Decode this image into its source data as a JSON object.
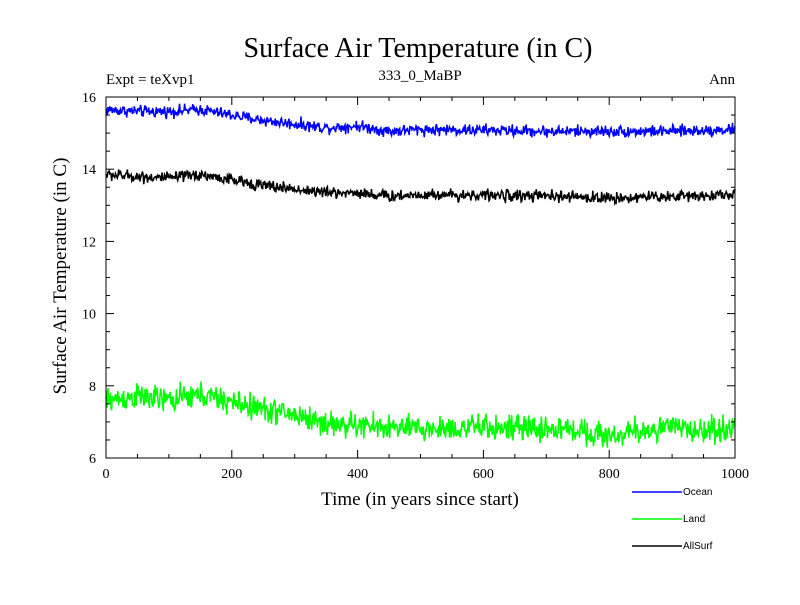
{
  "chart_data": {
    "type": "line",
    "title": "Surface Air Temperature (in C)",
    "subtitle_left": "Expt = teXvp1",
    "subtitle_center": "333_0_MaBP",
    "subtitle_right": "Ann",
    "xlabel": "Time (in years since start)",
    "ylabel": "Surface Air Temperature (in C)",
    "xlim": [
      0,
      1000
    ],
    "ylim": [
      6,
      16
    ],
    "xticks": [
      0,
      200,
      400,
      600,
      800,
      1000
    ],
    "yticks": [
      6,
      8,
      10,
      12,
      14,
      16
    ],
    "grid": false,
    "legend_position": "bottom-right-outside",
    "series": [
      {
        "name": "Ocean",
        "color": "#0000ff",
        "trend": [
          [
            0,
            15.65
          ],
          [
            50,
            15.6
          ],
          [
            100,
            15.6
          ],
          [
            150,
            15.65
          ],
          [
            200,
            15.5
          ],
          [
            250,
            15.35
          ],
          [
            300,
            15.25
          ],
          [
            350,
            15.15
          ],
          [
            400,
            15.2
          ],
          [
            450,
            15.05
          ],
          [
            500,
            15.1
          ],
          [
            600,
            15.08
          ],
          [
            700,
            15.05
          ],
          [
            800,
            15.05
          ],
          [
            900,
            15.05
          ],
          [
            1000,
            15.1
          ]
        ],
        "noise": 0.1
      },
      {
        "name": "Land",
        "color": "#00ff00",
        "trend": [
          [
            0,
            7.6
          ],
          [
            50,
            7.7
          ],
          [
            100,
            7.6
          ],
          [
            150,
            7.75
          ],
          [
            200,
            7.55
          ],
          [
            250,
            7.35
          ],
          [
            300,
            7.2
          ],
          [
            350,
            6.95
          ],
          [
            400,
            6.9
          ],
          [
            450,
            6.85
          ],
          [
            500,
            6.8
          ],
          [
            600,
            6.85
          ],
          [
            700,
            6.8
          ],
          [
            750,
            6.78
          ],
          [
            800,
            6.6
          ],
          [
            850,
            6.75
          ],
          [
            900,
            6.85
          ],
          [
            950,
            6.75
          ],
          [
            1000,
            6.85
          ]
        ],
        "noise": 0.22
      },
      {
        "name": "AllSurf",
        "color": "#000000",
        "trend": [
          [
            0,
            13.85
          ],
          [
            50,
            13.8
          ],
          [
            100,
            13.75
          ],
          [
            150,
            13.85
          ],
          [
            200,
            13.7
          ],
          [
            250,
            13.55
          ],
          [
            300,
            13.45
          ],
          [
            350,
            13.35
          ],
          [
            400,
            13.35
          ],
          [
            450,
            13.25
          ],
          [
            500,
            13.3
          ],
          [
            600,
            13.28
          ],
          [
            700,
            13.25
          ],
          [
            800,
            13.2
          ],
          [
            900,
            13.25
          ],
          [
            1000,
            13.3
          ]
        ],
        "noise": 0.1
      }
    ]
  }
}
